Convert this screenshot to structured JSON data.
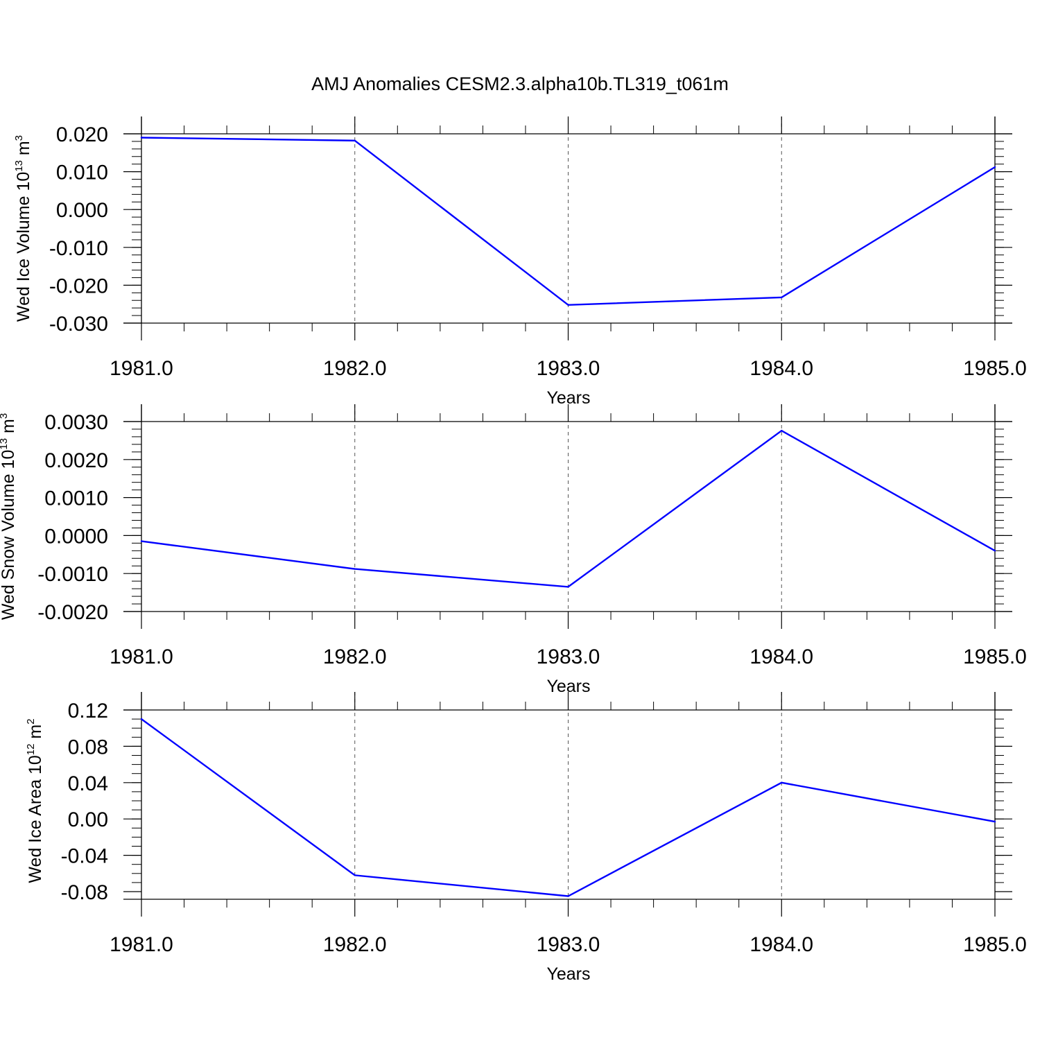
{
  "title": "AMJ Anomalies CESM2.3.alpha10b.TL319_t061m",
  "colors": {
    "line": "#0000ff",
    "axis": "#000000",
    "grid": "#555555"
  },
  "chart_data": [
    {
      "type": "line",
      "xlabel": "Years",
      "ylabel": {
        "text": "Wed Ice Volume 10",
        "exp": "13",
        "unit": " m",
        "unit_exp": "3"
      },
      "x": [
        1981,
        1982,
        1983,
        1984,
        1985
      ],
      "series": [
        {
          "values": [
            0.019,
            0.0182,
            -0.0252,
            -0.0232,
            0.0112
          ]
        }
      ],
      "xlim": [
        1981,
        1985
      ],
      "ylim": [
        -0.03,
        0.02
      ],
      "xticks": [
        1981,
        1982,
        1983,
        1984,
        1985
      ],
      "xtick_labels": [
        "1981.0",
        "1982.0",
        "1983.0",
        "1984.0",
        "1985.0"
      ],
      "yticks": [
        -0.03,
        -0.02,
        -0.01,
        0.0,
        0.01,
        0.02
      ],
      "ytick_labels": [
        "-0.030",
        "-0.020",
        "-0.010",
        "0.000",
        "0.010",
        "0.020"
      ],
      "ymin_minor_step": 0.002,
      "grid": "vertical dashed at major x ticks"
    },
    {
      "type": "line",
      "xlabel": "Years",
      "ylabel": {
        "text": "Wed Snow Volume 10",
        "exp": "13",
        "unit": " m",
        "unit_exp": "3"
      },
      "x": [
        1981,
        1982,
        1983,
        1984,
        1985
      ],
      "series": [
        {
          "values": [
            -0.00015,
            -0.00088,
            -0.00135,
            0.00276,
            -0.0004
          ]
        }
      ],
      "xlim": [
        1981,
        1985
      ],
      "ylim": [
        -0.002,
        0.003
      ],
      "xticks": [
        1981,
        1982,
        1983,
        1984,
        1985
      ],
      "xtick_labels": [
        "1981.0",
        "1982.0",
        "1983.0",
        "1984.0",
        "1985.0"
      ],
      "yticks": [
        -0.002,
        -0.001,
        0.0,
        0.001,
        0.002,
        0.003
      ],
      "ytick_labels": [
        "-0.0020",
        "-0.0010",
        "0.0000",
        "0.0010",
        "0.0020",
        "0.0030"
      ],
      "ymin_minor_step": 0.0002,
      "grid": "vertical dashed at major x ticks"
    },
    {
      "type": "line",
      "xlabel": "Years",
      "ylabel": {
        "text": "Wed Ice Area 10",
        "exp": "12",
        "unit": " m",
        "unit_exp": "2"
      },
      "x": [
        1981,
        1982,
        1983,
        1984,
        1985
      ],
      "series": [
        {
          "values": [
            0.11,
            -0.062,
            -0.085,
            0.04,
            -0.003
          ]
        }
      ],
      "xlim": [
        1981,
        1985
      ],
      "ylim": [
        -0.09,
        0.12
      ],
      "xticks": [
        1981,
        1982,
        1983,
        1984,
        1985
      ],
      "xtick_labels": [
        "1981.0",
        "1982.0",
        "1983.0",
        "1984.0",
        "1985.0"
      ],
      "yticks": [
        -0.08,
        -0.04,
        0.0,
        0.04,
        0.08,
        0.12
      ],
      "ytick_labels": [
        "-0.08",
        "-0.04",
        "0.00",
        "0.04",
        "0.08",
        "0.12"
      ],
      "ymin_minor_step": 0.01,
      "grid": "vertical dashed at major x ticks"
    }
  ]
}
